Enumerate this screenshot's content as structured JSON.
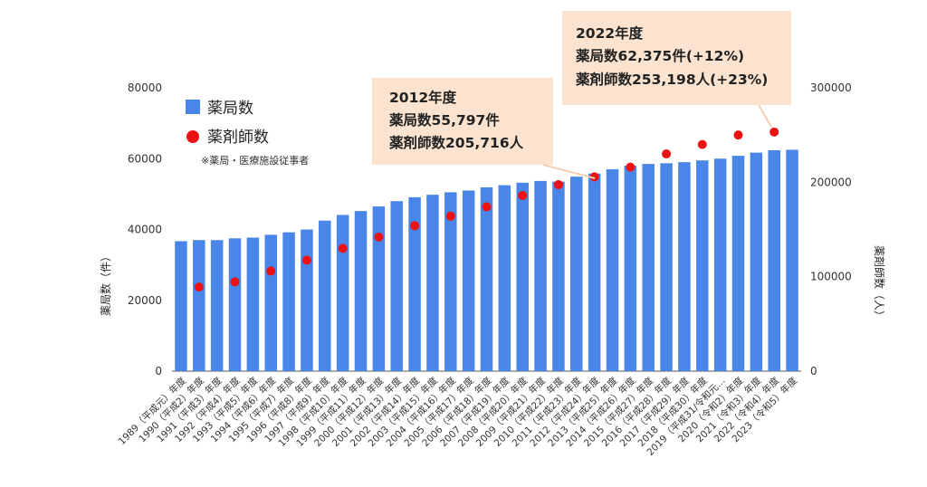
{
  "chart_data": {
    "type": "bar",
    "y_left_label": "薬局数（件）",
    "y_right_label": "薬剤師数（人）",
    "ylim_left": [
      0,
      80000
    ],
    "ylim_right": [
      0,
      300000
    ],
    "yticks_left": [
      "0",
      "20000",
      "40000",
      "60000",
      "80000"
    ],
    "yticks_right": [
      "0",
      "100000",
      "200000",
      "300000"
    ],
    "categories": [
      "1989（平成元）年度",
      "1990（平成2）年度",
      "1991（平成3）年度",
      "1992（平成4）年度",
      "1993（平成5）年度",
      "1994（平成6）年度",
      "1995（平成7）年度",
      "1996（平成8）年度",
      "1997（平成9）年度",
      "1998（平成10）年度",
      "1999（平成11）年度",
      "2000（平成12）年度",
      "2001（平成13）年度",
      "2002（平成14）年度",
      "2003（平成15）年度",
      "2004（平成16）年度",
      "2005（平成17）年度",
      "2006（平成18）年度",
      "2007（平成19）年度",
      "2008（平成20）年度",
      "2009（平成21）年度",
      "2010（平成22）年度",
      "2011（平成23）年度",
      "2012（平成24）年度",
      "2013（平成25）年度",
      "2014（平成26）年度",
      "2015（平成27）年度",
      "2016（平成28）年度",
      "2017（平成29）年度",
      "2018（平成30）年度",
      "2019（平成31/令和元…",
      "2020（令和2）年度",
      "2021（令和3）年度",
      "2022（令和4）年度",
      "2023（令和5）年度"
    ],
    "series": [
      {
        "name": "薬局数",
        "type": "bar",
        "axis": "left",
        "color": "#4a86e8",
        "values": [
          36700,
          37000,
          37000,
          37500,
          37700,
          38500,
          39200,
          40000,
          42500,
          44100,
          45200,
          46500,
          48000,
          49100,
          49800,
          50500,
          51000,
          51900,
          52500,
          53200,
          53700,
          53500,
          54900,
          55797,
          57000,
          58000,
          58500,
          58700,
          59000,
          59500,
          60000,
          60800,
          61700,
          62375,
          62500
        ]
      },
      {
        "name": "薬剤師数",
        "type": "scatter",
        "axis": "right",
        "color": "#ee1111",
        "values": [
          null,
          89000,
          null,
          94500,
          null,
          106000,
          null,
          117500,
          null,
          130000,
          null,
          142000,
          null,
          154000,
          null,
          164000,
          null,
          174000,
          null,
          186000,
          null,
          197500,
          null,
          205716,
          null,
          216000,
          null,
          230000,
          null,
          240000,
          null,
          250000,
          null,
          253198,
          null
        ]
      }
    ],
    "legend": {
      "position": "top-left",
      "bar_label": "薬局数",
      "dot_label": "薬剤師数",
      "note": "※薬局・医療施設従事者"
    },
    "annotations": [
      {
        "lines": [
          "2012年度",
          "薬局数55,797件",
          "薬剤師数205,716人"
        ],
        "fill": "#fbe3d0"
      },
      {
        "lines": [
          "2022年度",
          "薬局数62,375件(+12%)",
          "薬剤師数253,198人(+23%)"
        ],
        "fill": "#fbe3d0"
      }
    ]
  }
}
